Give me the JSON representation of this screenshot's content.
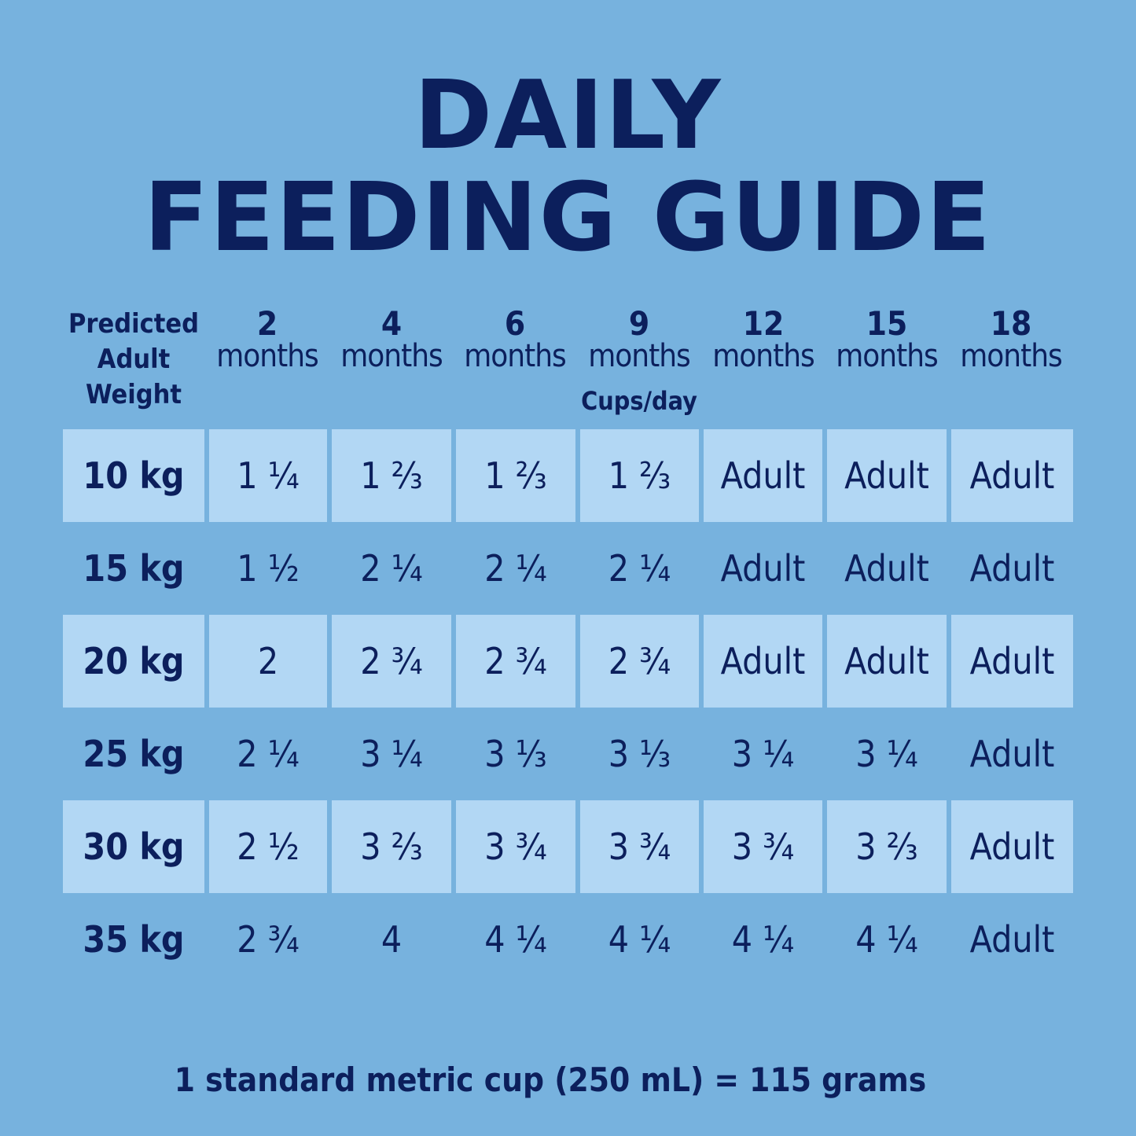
{
  "title": {
    "line1": "DAILY",
    "line2": "FEEDING GUIDE"
  },
  "table": {
    "weight_header": [
      "Predicted",
      "Adult",
      "Weight"
    ],
    "unit_label": "Cups/day",
    "age_columns": [
      {
        "num": "2",
        "unit": "months"
      },
      {
        "num": "4",
        "unit": "months"
      },
      {
        "num": "6",
        "unit": "months"
      },
      {
        "num": "9",
        "unit": "months"
      },
      {
        "num": "12",
        "unit": "months"
      },
      {
        "num": "15",
        "unit": "months"
      },
      {
        "num": "18",
        "unit": "months"
      }
    ],
    "rows": [
      {
        "weight": "10 kg",
        "values": [
          "1 ¼",
          "1 ⅔",
          "1 ⅔",
          "1 ⅔",
          "Adult",
          "Adult",
          "Adult"
        ]
      },
      {
        "weight": "15 kg",
        "values": [
          "1 ½",
          "2 ¼",
          "2 ¼",
          "2 ¼",
          "Adult",
          "Adult",
          "Adult"
        ]
      },
      {
        "weight": "20 kg",
        "values": [
          "2",
          "2 ¾",
          "2 ¾",
          "2 ¾",
          "Adult",
          "Adult",
          "Adult"
        ]
      },
      {
        "weight": "25 kg",
        "values": [
          "2 ¼",
          "3 ¼",
          "3 ⅓",
          "3 ⅓",
          "3 ¼",
          "3 ¼",
          "Adult"
        ]
      },
      {
        "weight": "30 kg",
        "values": [
          "2 ½",
          "3 ⅔",
          "3 ¾",
          "3 ¾",
          "3 ¾",
          "3 ⅔",
          "Adult"
        ]
      },
      {
        "weight": "35 kg",
        "values": [
          "2 ¾",
          "4",
          "4 ¼",
          "4 ¼",
          "4 ¼",
          "4 ¼",
          "Adult"
        ]
      }
    ]
  },
  "footer": "1 standard metric cup (250 mL) = 115 grams"
}
